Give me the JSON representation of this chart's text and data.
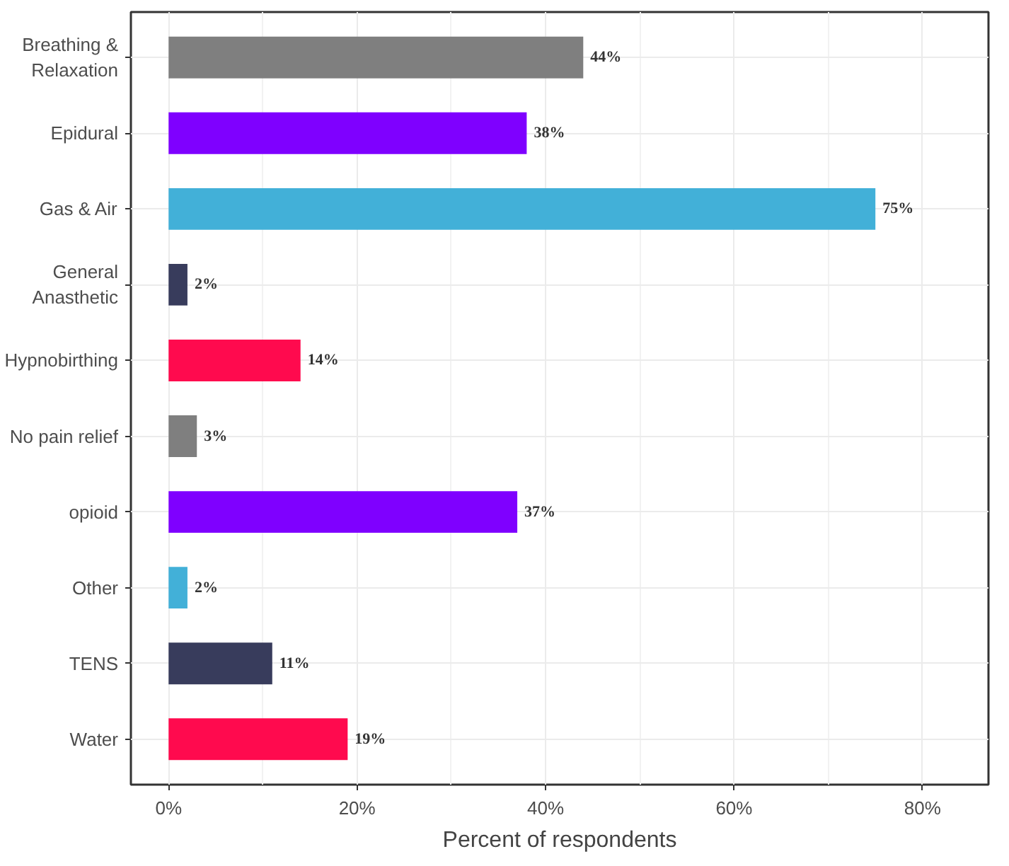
{
  "chart_data": {
    "type": "bar",
    "orientation": "horizontal",
    "xlabel": "Percent of respondents",
    "categories": [
      "Breathing &\nRelaxation",
      "Epidural",
      "Gas & Air",
      "General\nAnasthetic",
      "Hypnobirthing",
      "No pain relief",
      "opioid",
      "Other",
      "TENS",
      "Water"
    ],
    "values": [
      44,
      38,
      75,
      2,
      14,
      3,
      37,
      2,
      11,
      19
    ],
    "colors": [
      "#7f7f7f",
      "#7f00ff",
      "#42b0d8",
      "#383c5c",
      "#ff0a4e",
      "#7f7f7f",
      "#7f00ff",
      "#42b0d8",
      "#383c5c",
      "#ff0a4e"
    ],
    "value_labels": [
      "44%",
      "38%",
      "75%",
      "2%",
      "14%",
      "3%",
      "37%",
      "2%",
      "11%",
      "19%"
    ],
    "xlim": [
      -4,
      87
    ],
    "xticks": [
      {
        "value": 0,
        "label": "0%"
      },
      {
        "value": 20,
        "label": "20%"
      },
      {
        "value": 40,
        "label": "40%"
      },
      {
        "value": 60,
        "label": "60%"
      },
      {
        "value": 80,
        "label": "80%"
      }
    ],
    "grid": true
  }
}
